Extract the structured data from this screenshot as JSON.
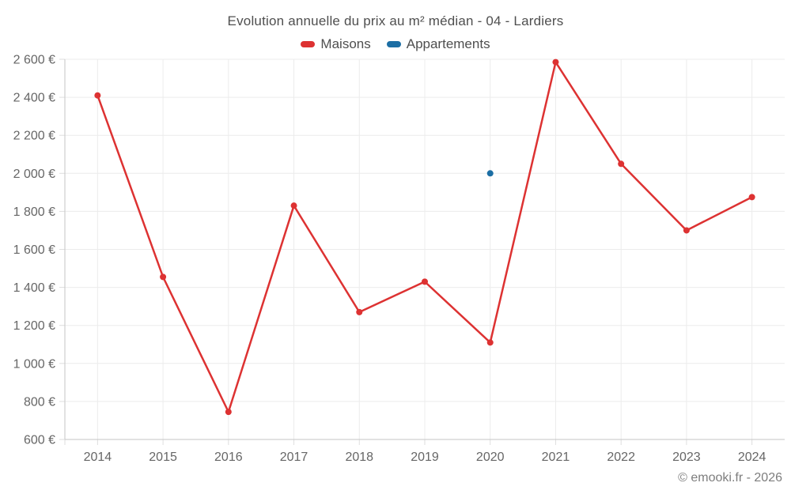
{
  "header": {
    "title": "Evolution annuelle du prix au m² médian - 04 - Lardiers"
  },
  "footer": {
    "copyright": "© emooki.fr - 2026"
  },
  "colors": {
    "maisons": "#dd3232",
    "appartements": "#1c6ea4",
    "grid": "#ececec",
    "axis": "#c6c6c6",
    "tick": "#dedede",
    "axis_text": "#666666"
  },
  "chart_data": {
    "type": "line",
    "title": "Evolution annuelle du prix au m² médian - 04 - Lardiers",
    "x": [
      "2014",
      "2015",
      "2016",
      "2017",
      "2018",
      "2019",
      "2020",
      "2021",
      "2022",
      "2023",
      "2024"
    ],
    "series": [
      {
        "name": "Maisons",
        "color": "#dd3232",
        "values": [
          2410,
          1455,
          745,
          1830,
          1270,
          1430,
          1110,
          2585,
          2050,
          1700,
          1875
        ]
      },
      {
        "name": "Appartements",
        "color": "#1c6ea4",
        "values": [
          null,
          null,
          null,
          null,
          null,
          null,
          2000,
          null,
          null,
          null,
          null
        ]
      }
    ],
    "xlabel": "",
    "ylabel": "",
    "ylim": [
      600,
      2600
    ],
    "ytick_step": 200,
    "yticks": [
      {
        "value": 600,
        "label": "600 €"
      },
      {
        "value": 800,
        "label": "800 €"
      },
      {
        "value": 1000,
        "label": "1 000 €"
      },
      {
        "value": 1200,
        "label": "1 200 €"
      },
      {
        "value": 1400,
        "label": "1 400 €"
      },
      {
        "value": 1600,
        "label": "1 600 €"
      },
      {
        "value": 1800,
        "label": "1 800 €"
      },
      {
        "value": 2000,
        "label": "2 000 €"
      },
      {
        "value": 2200,
        "label": "2 200 €"
      },
      {
        "value": 2400,
        "label": "2 400 €"
      },
      {
        "value": 2600,
        "label": "2 600 €"
      }
    ],
    "grid": true,
    "legend_position": "top"
  }
}
